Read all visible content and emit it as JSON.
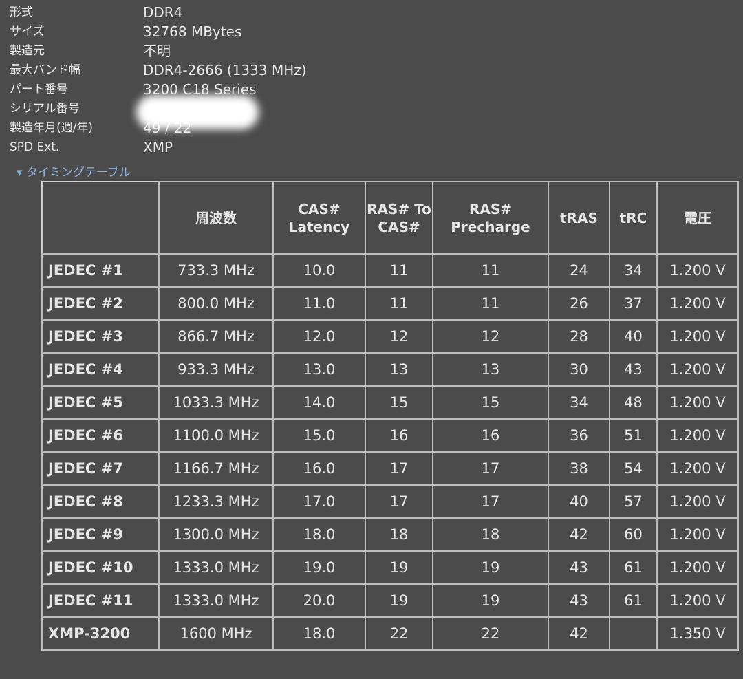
{
  "info": [
    {
      "label": "形式",
      "value": "DDR4"
    },
    {
      "label": "サイズ",
      "value": "32768 MBytes"
    },
    {
      "label": "製造元",
      "value": "不明"
    },
    {
      "label": "最大バンド幅",
      "value": "DDR4-2666 (1333 MHz)"
    },
    {
      "label": "パート番号",
      "value": "3200 C18 Series"
    },
    {
      "label": "シリアル番号",
      "value": ""
    },
    {
      "label": "製造年月(週/年)",
      "value": "49 / 22"
    },
    {
      "label": "SPD Ext.",
      "value": "XMP"
    }
  ],
  "timing_toggle": "タイミングテーブル",
  "table": {
    "headers": [
      "",
      "周波数",
      "CAS# Latency",
      "RAS# To CAS#",
      "RAS# Precharge",
      "tRAS",
      "tRC",
      "電圧"
    ],
    "rows": [
      [
        "JEDEC #1",
        "733.3 MHz",
        "10.0",
        "11",
        "11",
        "24",
        "34",
        "1.200 V"
      ],
      [
        "JEDEC #2",
        "800.0 MHz",
        "11.0",
        "11",
        "11",
        "26",
        "37",
        "1.200 V"
      ],
      [
        "JEDEC #3",
        "866.7 MHz",
        "12.0",
        "12",
        "12",
        "28",
        "40",
        "1.200 V"
      ],
      [
        "JEDEC #4",
        "933.3 MHz",
        "13.0",
        "13",
        "13",
        "30",
        "43",
        "1.200 V"
      ],
      [
        "JEDEC #5",
        "1033.3 MHz",
        "14.0",
        "15",
        "15",
        "34",
        "48",
        "1.200 V"
      ],
      [
        "JEDEC #6",
        "1100.0 MHz",
        "15.0",
        "16",
        "16",
        "36",
        "51",
        "1.200 V"
      ],
      [
        "JEDEC #7",
        "1166.7 MHz",
        "16.0",
        "17",
        "17",
        "38",
        "54",
        "1.200 V"
      ],
      [
        "JEDEC #8",
        "1233.3 MHz",
        "17.0",
        "17",
        "17",
        "40",
        "57",
        "1.200 V"
      ],
      [
        "JEDEC #9",
        "1300.0 MHz",
        "18.0",
        "18",
        "18",
        "42",
        "60",
        "1.200 V"
      ],
      [
        "JEDEC #10",
        "1333.0 MHz",
        "19.0",
        "19",
        "19",
        "43",
        "61",
        "1.200 V"
      ],
      [
        "JEDEC #11",
        "1333.0 MHz",
        "20.0",
        "19",
        "19",
        "43",
        "61",
        "1.200 V"
      ],
      [
        "XMP-3200",
        "1600 MHz",
        "18.0",
        "22",
        "22",
        "42",
        "",
        "1.350 V"
      ]
    ]
  }
}
